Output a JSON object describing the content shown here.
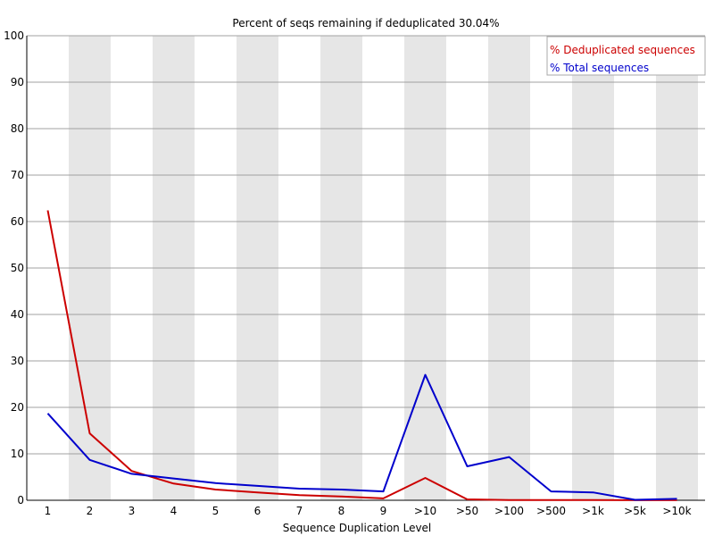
{
  "chart_data": {
    "type": "line",
    "title": "Percent of seqs remaining if deduplicated 30.04%",
    "xlabel": "Sequence Duplication Level",
    "ylabel": "",
    "ylim": [
      0,
      100
    ],
    "yticks": [
      0,
      10,
      20,
      30,
      40,
      50,
      60,
      70,
      80,
      90,
      100
    ],
    "grid": true,
    "legend_position": "top-right",
    "categories": [
      "1",
      "2",
      "3",
      "4",
      "5",
      "6",
      "7",
      "8",
      "9",
      ">10",
      ">50",
      ">100",
      ">500",
      ">1k",
      ">5k",
      ">10k"
    ],
    "series": [
      {
        "name": "% Deduplicated sequences",
        "color": "#cc0000",
        "values": [
          62.4,
          14.4,
          6.3,
          3.6,
          2.3,
          1.7,
          1.1,
          0.8,
          0.4,
          4.8,
          0.2,
          0.05,
          0.05,
          0.05,
          0.02,
          0.02
        ]
      },
      {
        "name": "% Total sequences",
        "color": "#0000cc",
        "values": [
          18.7,
          8.7,
          5.7,
          4.7,
          3.7,
          3.1,
          2.5,
          2.3,
          1.9,
          27.0,
          7.3,
          9.3,
          1.9,
          1.7,
          0.1,
          0.3
        ]
      }
    ]
  }
}
